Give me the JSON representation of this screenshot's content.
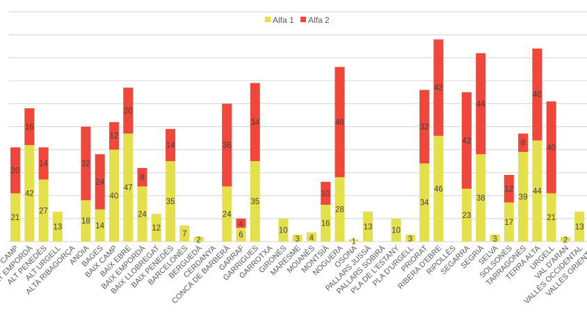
{
  "chart_data": {
    "type": "bar",
    "stacked": true,
    "title": "",
    "xlabel": "",
    "ylabel": "",
    "ylim": [
      0,
      110
    ],
    "y_major_step": 10,
    "grid": true,
    "legend_position": "top-center",
    "categories": [
      "ALT CAMP",
      "ALT EMPORDÀ",
      "ALT PENEDÈS",
      "ALT URGELL",
      "ALTA RIBAGORÇA",
      "ANOIA",
      "BAGES",
      "BAIX CAMP",
      "BAIX EBRE",
      "BAIX EMPORDÀ",
      "BAIX LLOBREGAT",
      "BAIX PENEDÈS",
      "BARCELONÈS",
      "BERGUEDÀ",
      "CERDANYA",
      "CONCA DE BARBERÀ",
      "GARRAF",
      "GARRIGUES",
      "GARROTXA",
      "GIRONÈS",
      "MARESME",
      "MOIANÈS",
      "MONTSIÀ",
      "NOGUERA",
      "OSONA",
      "PALLARS JUSSÀ",
      "PALLARS SOBIRÀ",
      "PLA DE L'ESTANY",
      "PLA D'URGELL",
      "PRIORAT",
      "RIBERA D'EBRE",
      "RIPOLLÈS",
      "SEGARRA",
      "SEGRIÀ",
      "SELVA",
      "SOLSONÈS",
      "TARRAGONÈS",
      "TERRA ALTA",
      "URGELL",
      "VAL D'ARAN",
      "VALLÈS OCCIDENTAL",
      "VALLÈS ORIENTAL"
    ],
    "series": [
      {
        "name": "Alfa 1",
        "color": "#e4e04b",
        "values": [
          21,
          42,
          27,
          13,
          null,
          18,
          14,
          40,
          47,
          24,
          12,
          35,
          7,
          2,
          null,
          24,
          6,
          35,
          null,
          10,
          3,
          4,
          16,
          28,
          1,
          13,
          null,
          10,
          3,
          34,
          46,
          null,
          23,
          38,
          3,
          17,
          39,
          44,
          21,
          2,
          13,
          null
        ]
      },
      {
        "name": "Alfa 2",
        "color": "#ef473b",
        "values": [
          20,
          16,
          14,
          null,
          null,
          32,
          24,
          12,
          20,
          8,
          null,
          14,
          null,
          null,
          null,
          36,
          4,
          34,
          null,
          null,
          null,
          null,
          10,
          48,
          null,
          null,
          null,
          null,
          null,
          32,
          42,
          null,
          42,
          44,
          null,
          12,
          8,
          40,
          40,
          null,
          null,
          null
        ]
      }
    ]
  }
}
